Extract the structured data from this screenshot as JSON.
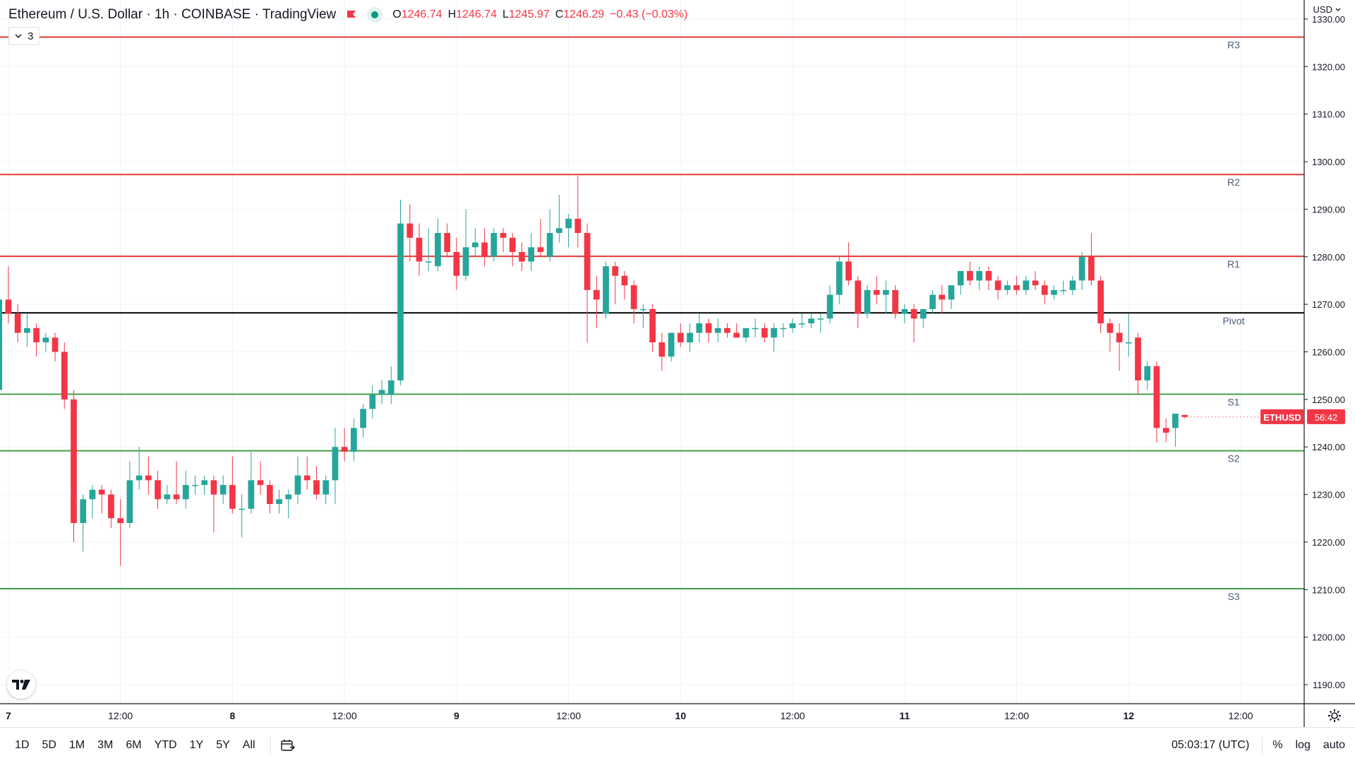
{
  "legend": {
    "symbol_title": "Ethereum / U.S. Dollar · 1h · COINBASE · TradingView",
    "flag_icon": "flag-icon",
    "status_icon": "market-open-dot-icon",
    "ohlc": [
      {
        "k": "O",
        "v": "1246.74"
      },
      {
        "k": "H",
        "v": "1246.74"
      },
      {
        "k": "L",
        "v": "1245.97"
      },
      {
        "k": "C",
        "v": "1246.29"
      }
    ],
    "change": "−0.43 (−0.03%)",
    "indicators_count": "3"
  },
  "currency": "USD",
  "price_label": {
    "symbol": "ETHUSD",
    "countdown": "56:42"
  },
  "bottom": {
    "ranges": [
      "1D",
      "5D",
      "1M",
      "3M",
      "6M",
      "YTD",
      "1Y",
      "5Y",
      "All"
    ],
    "clock": "05:03:17 (UTC)",
    "percent": "%",
    "log": "log",
    "auto": "auto"
  },
  "colors": {
    "up": "#26a69a",
    "down": "#f23645",
    "resistance": "#e53935",
    "support": "#43a047",
    "pivot": "#000000",
    "grid": "#f0f3fa"
  },
  "chart_data": {
    "type": "candlestick",
    "symbol": "ETHUSD",
    "interval": "1h",
    "ylim": [
      1186,
      1334
    ],
    "y_ticks": [
      1190,
      1200,
      1210,
      1220,
      1230,
      1240,
      1250,
      1260,
      1270,
      1280,
      1290,
      1300,
      1310,
      1320,
      1330
    ],
    "x_ticks": [
      {
        "t": 0,
        "label": "7"
      },
      {
        "t": 12,
        "label": "12:00"
      },
      {
        "t": 24,
        "label": "8"
      },
      {
        "t": 36,
        "label": "12:00"
      },
      {
        "t": 48,
        "label": "9"
      },
      {
        "t": 60,
        "label": "12:00"
      },
      {
        "t": 72,
        "label": "10"
      },
      {
        "t": 84,
        "label": "12:00"
      },
      {
        "t": 96,
        "label": "11"
      },
      {
        "t": 108,
        "label": "12:00"
      },
      {
        "t": 120,
        "label": "12"
      },
      {
        "t": 132,
        "label": "12:00"
      }
    ],
    "xlim": [
      -0.9,
      138.8
    ],
    "levels": [
      {
        "label": "R3",
        "value": 1326.2,
        "kind": "resistance"
      },
      {
        "label": "R2",
        "value": 1297.3,
        "kind": "resistance"
      },
      {
        "label": "R1",
        "value": 1280.1,
        "kind": "resistance"
      },
      {
        "label": "Pivot",
        "value": 1268.2,
        "kind": "pivot"
      },
      {
        "label": "S1",
        "value": 1251.1,
        "kind": "support"
      },
      {
        "label": "S2",
        "value": 1239.2,
        "kind": "support"
      },
      {
        "label": "S3",
        "value": 1210.2,
        "kind": "support"
      }
    ],
    "last_price": 1246.29,
    "candles": [
      {
        "t": -1,
        "o": 1252,
        "h": 1274,
        "l": 1250,
        "c": 1271
      },
      {
        "t": 0,
        "o": 1271,
        "h": 1278,
        "l": 1266,
        "c": 1268
      },
      {
        "t": 1,
        "o": 1268,
        "h": 1270,
        "l": 1262,
        "c": 1264
      },
      {
        "t": 2,
        "o": 1264,
        "h": 1268,
        "l": 1261,
        "c": 1265
      },
      {
        "t": 3,
        "o": 1265,
        "h": 1266,
        "l": 1259,
        "c": 1262
      },
      {
        "t": 4,
        "o": 1262,
        "h": 1264,
        "l": 1260,
        "c": 1263
      },
      {
        "t": 5,
        "o": 1263,
        "h": 1264,
        "l": 1258,
        "c": 1260
      },
      {
        "t": 6,
        "o": 1260,
        "h": 1262,
        "l": 1248,
        "c": 1250
      },
      {
        "t": 7,
        "o": 1250,
        "h": 1252,
        "l": 1220,
        "c": 1224
      },
      {
        "t": 8,
        "o": 1224,
        "h": 1230,
        "l": 1218,
        "c": 1229
      },
      {
        "t": 9,
        "o": 1229,
        "h": 1232,
        "l": 1225,
        "c": 1231
      },
      {
        "t": 10,
        "o": 1231,
        "h": 1232,
        "l": 1226,
        "c": 1230
      },
      {
        "t": 11,
        "o": 1230,
        "h": 1231,
        "l": 1223,
        "c": 1225
      },
      {
        "t": 12,
        "o": 1225,
        "h": 1229,
        "l": 1215,
        "c": 1224
      },
      {
        "t": 13,
        "o": 1224,
        "h": 1237,
        "l": 1223,
        "c": 1233
      },
      {
        "t": 14,
        "o": 1233,
        "h": 1240,
        "l": 1231,
        "c": 1234
      },
      {
        "t": 15,
        "o": 1234,
        "h": 1238,
        "l": 1230,
        "c": 1233
      },
      {
        "t": 16,
        "o": 1233,
        "h": 1235,
        "l": 1227,
        "c": 1229
      },
      {
        "t": 17,
        "o": 1229,
        "h": 1232,
        "l": 1228,
        "c": 1230
      },
      {
        "t": 18,
        "o": 1230,
        "h": 1237,
        "l": 1228,
        "c": 1229
      },
      {
        "t": 19,
        "o": 1229,
        "h": 1235,
        "l": 1227,
        "c": 1232
      },
      {
        "t": 20,
        "o": 1232,
        "h": 1234,
        "l": 1230,
        "c": 1232
      },
      {
        "t": 21,
        "o": 1232,
        "h": 1234,
        "l": 1230,
        "c": 1233
      },
      {
        "t": 22,
        "o": 1233,
        "h": 1234,
        "l": 1222,
        "c": 1230
      },
      {
        "t": 23,
        "o": 1230,
        "h": 1234,
        "l": 1228,
        "c": 1232
      },
      {
        "t": 24,
        "o": 1232,
        "h": 1238,
        "l": 1226,
        "c": 1227
      },
      {
        "t": 25,
        "o": 1227,
        "h": 1230,
        "l": 1221,
        "c": 1227
      },
      {
        "t": 26,
        "o": 1227,
        "h": 1239,
        "l": 1226,
        "c": 1233
      },
      {
        "t": 27,
        "o": 1233,
        "h": 1237,
        "l": 1230,
        "c": 1232
      },
      {
        "t": 28,
        "o": 1232,
        "h": 1233,
        "l": 1226,
        "c": 1228
      },
      {
        "t": 29,
        "o": 1228,
        "h": 1231,
        "l": 1226,
        "c": 1229
      },
      {
        "t": 30,
        "o": 1229,
        "h": 1231,
        "l": 1225,
        "c": 1230
      },
      {
        "t": 31,
        "o": 1230,
        "h": 1238,
        "l": 1228,
        "c": 1234
      },
      {
        "t": 32,
        "o": 1234,
        "h": 1238,
        "l": 1231,
        "c": 1233
      },
      {
        "t": 33,
        "o": 1233,
        "h": 1236,
        "l": 1229,
        "c": 1230
      },
      {
        "t": 34,
        "o": 1230,
        "h": 1234,
        "l": 1228,
        "c": 1233
      },
      {
        "t": 35,
        "o": 1233,
        "h": 1244,
        "l": 1228,
        "c": 1240
      },
      {
        "t": 36,
        "o": 1240,
        "h": 1244,
        "l": 1237,
        "c": 1239
      },
      {
        "t": 37,
        "o": 1239,
        "h": 1246,
        "l": 1237,
        "c": 1244
      },
      {
        "t": 38,
        "o": 1244,
        "h": 1249,
        "l": 1242,
        "c": 1248
      },
      {
        "t": 39,
        "o": 1248,
        "h": 1253,
        "l": 1246,
        "c": 1251
      },
      {
        "t": 40,
        "o": 1251,
        "h": 1254,
        "l": 1249,
        "c": 1252
      },
      {
        "t": 41,
        "o": 1251,
        "h": 1257,
        "l": 1249,
        "c": 1254
      },
      {
        "t": 42,
        "o": 1254,
        "h": 1292,
        "l": 1253,
        "c": 1287
      },
      {
        "t": 43,
        "o": 1287,
        "h": 1291,
        "l": 1279,
        "c": 1284
      },
      {
        "t": 44,
        "o": 1284,
        "h": 1287,
        "l": 1276,
        "c": 1279
      },
      {
        "t": 45,
        "o": 1279,
        "h": 1286,
        "l": 1277,
        "c": 1279
      },
      {
        "t": 46,
        "o": 1278,
        "h": 1288,
        "l": 1277,
        "c": 1285
      },
      {
        "t": 47,
        "o": 1285,
        "h": 1287,
        "l": 1280,
        "c": 1281
      },
      {
        "t": 48,
        "o": 1281,
        "h": 1284,
        "l": 1273,
        "c": 1276
      },
      {
        "t": 49,
        "o": 1276,
        "h": 1290,
        "l": 1275,
        "c": 1282
      },
      {
        "t": 50,
        "o": 1282,
        "h": 1286,
        "l": 1280,
        "c": 1283
      },
      {
        "t": 51,
        "o": 1283,
        "h": 1286,
        "l": 1278,
        "c": 1280
      },
      {
        "t": 52,
        "o": 1280,
        "h": 1286,
        "l": 1279,
        "c": 1285
      },
      {
        "t": 53,
        "o": 1285,
        "h": 1286,
        "l": 1281,
        "c": 1284
      },
      {
        "t": 54,
        "o": 1284,
        "h": 1285,
        "l": 1278,
        "c": 1281
      },
      {
        "t": 55,
        "o": 1281,
        "h": 1283,
        "l": 1277,
        "c": 1279
      },
      {
        "t": 56,
        "o": 1279,
        "h": 1285,
        "l": 1277,
        "c": 1282
      },
      {
        "t": 57,
        "o": 1282,
        "h": 1288,
        "l": 1280,
        "c": 1281
      },
      {
        "t": 58,
        "o": 1280,
        "h": 1290,
        "l": 1279,
        "c": 1285
      },
      {
        "t": 59,
        "o": 1285,
        "h": 1293,
        "l": 1283,
        "c": 1286
      },
      {
        "t": 60,
        "o": 1286,
        "h": 1289,
        "l": 1282,
        "c": 1288
      },
      {
        "t": 61,
        "o": 1288,
        "h": 1297,
        "l": 1282,
        "c": 1285
      },
      {
        "t": 62,
        "o": 1285,
        "h": 1287,
        "l": 1262,
        "c": 1273
      },
      {
        "t": 63,
        "o": 1273,
        "h": 1276,
        "l": 1265,
        "c": 1271
      },
      {
        "t": 64,
        "o": 1268,
        "h": 1279,
        "l": 1267,
        "c": 1278
      },
      {
        "t": 65,
        "o": 1278,
        "h": 1279,
        "l": 1270,
        "c": 1276
      },
      {
        "t": 66,
        "o": 1276,
        "h": 1277,
        "l": 1271,
        "c": 1274
      },
      {
        "t": 67,
        "o": 1274,
        "h": 1275,
        "l": 1266,
        "c": 1269
      },
      {
        "t": 68,
        "o": 1269,
        "h": 1270,
        "l": 1265,
        "c": 1269
      },
      {
        "t": 69,
        "o": 1269,
        "h": 1270,
        "l": 1260,
        "c": 1262
      },
      {
        "t": 70,
        "o": 1262,
        "h": 1264,
        "l": 1256,
        "c": 1259
      },
      {
        "t": 71,
        "o": 1259,
        "h": 1264,
        "l": 1258,
        "c": 1264
      },
      {
        "t": 72,
        "o": 1264,
        "h": 1266,
        "l": 1261,
        "c": 1262
      },
      {
        "t": 73,
        "o": 1262,
        "h": 1266,
        "l": 1260,
        "c": 1264
      },
      {
        "t": 74,
        "o": 1264,
        "h": 1268,
        "l": 1262,
        "c": 1266
      },
      {
        "t": 75,
        "o": 1266,
        "h": 1267,
        "l": 1262,
        "c": 1264
      },
      {
        "t": 76,
        "o": 1264,
        "h": 1267,
        "l": 1262,
        "c": 1265
      },
      {
        "t": 77,
        "o": 1265,
        "h": 1266,
        "l": 1263,
        "c": 1264
      },
      {
        "t": 78,
        "o": 1264,
        "h": 1266,
        "l": 1263,
        "c": 1263
      },
      {
        "t": 79,
        "o": 1263,
        "h": 1265,
        "l": 1262,
        "c": 1265
      },
      {
        "t": 80,
        "o": 1265,
        "h": 1267,
        "l": 1263,
        "c": 1265
      },
      {
        "t": 81,
        "o": 1265,
        "h": 1266,
        "l": 1262,
        "c": 1263
      },
      {
        "t": 82,
        "o": 1263,
        "h": 1266,
        "l": 1260,
        "c": 1265
      },
      {
        "t": 83,
        "o": 1265,
        "h": 1266,
        "l": 1263,
        "c": 1265
      },
      {
        "t": 84,
        "o": 1265,
        "h": 1267,
        "l": 1264,
        "c": 1266
      },
      {
        "t": 85,
        "o": 1266,
        "h": 1268,
        "l": 1265,
        "c": 1266
      },
      {
        "t": 86,
        "o": 1266,
        "h": 1268,
        "l": 1265,
        "c": 1267
      },
      {
        "t": 87,
        "o": 1267,
        "h": 1268,
        "l": 1264,
        "c": 1267
      },
      {
        "t": 88,
        "o": 1267,
        "h": 1274,
        "l": 1266,
        "c": 1272
      },
      {
        "t": 89,
        "o": 1272,
        "h": 1280,
        "l": 1270,
        "c": 1279
      },
      {
        "t": 90,
        "o": 1279,
        "h": 1283,
        "l": 1274,
        "c": 1275
      },
      {
        "t": 91,
        "o": 1275,
        "h": 1276,
        "l": 1265,
        "c": 1268
      },
      {
        "t": 92,
        "o": 1268,
        "h": 1274,
        "l": 1267,
        "c": 1273
      },
      {
        "t": 93,
        "o": 1273,
        "h": 1276,
        "l": 1270,
        "c": 1272
      },
      {
        "t": 94,
        "o": 1272,
        "h": 1275,
        "l": 1268,
        "c": 1273
      },
      {
        "t": 95,
        "o": 1273,
        "h": 1274,
        "l": 1267,
        "c": 1268
      },
      {
        "t": 96,
        "o": 1268,
        "h": 1270,
        "l": 1266,
        "c": 1269
      },
      {
        "t": 97,
        "o": 1269,
        "h": 1270,
        "l": 1262,
        "c": 1267
      },
      {
        "t": 98,
        "o": 1267,
        "h": 1269,
        "l": 1265,
        "c": 1269
      },
      {
        "t": 99,
        "o": 1269,
        "h": 1273,
        "l": 1268,
        "c": 1272
      },
      {
        "t": 100,
        "o": 1272,
        "h": 1274,
        "l": 1268,
        "c": 1271
      },
      {
        "t": 101,
        "o": 1271,
        "h": 1274,
        "l": 1269,
        "c": 1274
      },
      {
        "t": 102,
        "o": 1274,
        "h": 1277,
        "l": 1272,
        "c": 1277
      },
      {
        "t": 103,
        "o": 1277,
        "h": 1279,
        "l": 1274,
        "c": 1275
      },
      {
        "t": 104,
        "o": 1275,
        "h": 1278,
        "l": 1273,
        "c": 1277
      },
      {
        "t": 105,
        "o": 1277,
        "h": 1278,
        "l": 1273,
        "c": 1275
      },
      {
        "t": 106,
        "o": 1275,
        "h": 1276,
        "l": 1271,
        "c": 1273
      },
      {
        "t": 107,
        "o": 1273,
        "h": 1275,
        "l": 1272,
        "c": 1274
      },
      {
        "t": 108,
        "o": 1274,
        "h": 1276,
        "l": 1272,
        "c": 1273
      },
      {
        "t": 109,
        "o": 1273,
        "h": 1276,
        "l": 1272,
        "c": 1275
      },
      {
        "t": 110,
        "o": 1275,
        "h": 1277,
        "l": 1273,
        "c": 1274
      },
      {
        "t": 111,
        "o": 1274,
        "h": 1275,
        "l": 1270,
        "c": 1272
      },
      {
        "t": 112,
        "o": 1272,
        "h": 1274,
        "l": 1271,
        "c": 1273
      },
      {
        "t": 113,
        "o": 1273,
        "h": 1275,
        "l": 1272,
        "c": 1273
      },
      {
        "t": 114,
        "o": 1273,
        "h": 1276,
        "l": 1272,
        "c": 1275
      },
      {
        "t": 115,
        "o": 1275,
        "h": 1281,
        "l": 1273,
        "c": 1280
      },
      {
        "t": 116,
        "o": 1280,
        "h": 1285,
        "l": 1274,
        "c": 1275
      },
      {
        "t": 117,
        "o": 1275,
        "h": 1276,
        "l": 1264,
        "c": 1266
      },
      {
        "t": 118,
        "o": 1266,
        "h": 1267,
        "l": 1260,
        "c": 1264
      },
      {
        "t": 119,
        "o": 1264,
        "h": 1266,
        "l": 1256,
        "c": 1262
      },
      {
        "t": 120,
        "o": 1262,
        "h": 1268,
        "l": 1259,
        "c": 1262
      },
      {
        "t": 121,
        "o": 1263,
        "h": 1264,
        "l": 1251,
        "c": 1254
      },
      {
        "t": 122,
        "o": 1254,
        "h": 1258,
        "l": 1252,
        "c": 1257
      },
      {
        "t": 123,
        "o": 1257,
        "h": 1258,
        "l": 1241,
        "c": 1244
      },
      {
        "t": 124,
        "o": 1244,
        "h": 1246,
        "l": 1241,
        "c": 1243
      },
      {
        "t": 125,
        "o": 1244,
        "h": 1247,
        "l": 1240,
        "c": 1247
      },
      {
        "t": 126,
        "o": 1246.74,
        "h": 1246.74,
        "l": 1245.97,
        "c": 1246.29
      }
    ]
  }
}
